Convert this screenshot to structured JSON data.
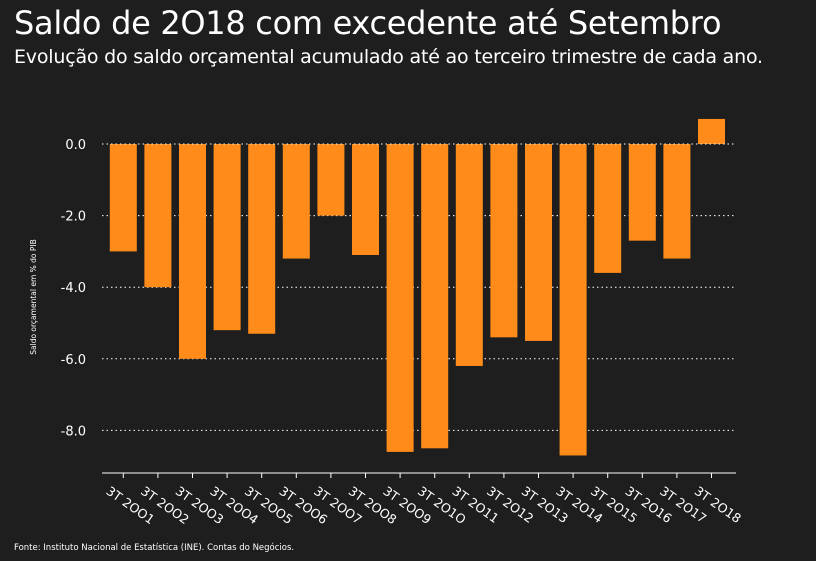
{
  "chart_data": {
    "type": "bar",
    "title": "Saldo de 2O18 com excedente até Setembro",
    "subtitle": "Evolução do saldo orçamental acumulado até ao terceiro trimestre de cada ano.",
    "ylabel": "Saldo orçamental em % do PIB",
    "xlabel": "",
    "ylim": [
      -9.2,
      0.8
    ],
    "yticks": [
      0.0,
      -2.0,
      -4.0,
      -6.0,
      -8.0
    ],
    "ytick_labels": [
      "0.0",
      "-2.0",
      "-4.0",
      "-6.0",
      "-8.0"
    ],
    "grid": "dotted horizontal",
    "categories": [
      "3T 2001",
      "3T 2002",
      "3T 2003",
      "3T 2004",
      "3T 2005",
      "3T 2006",
      "3T 2007",
      "3T 2008",
      "3T 2009",
      "3T 2010",
      "3T 2011",
      "3T 2012",
      "3T 2013",
      "3T 2014",
      "3T 2015",
      "3T 2016",
      "3T 2017",
      "3T 2018"
    ],
    "category_labels": [
      "3T 2OO1",
      "3T 2OO2",
      "3T 2OO3",
      "3T 2OO4",
      "3T 2OO5",
      "3T 2OO6",
      "3T 2OO7",
      "3T 2OO8",
      "3T 2OO9",
      "3T 2O1O",
      "3T 2O11",
      "3T 2O12",
      "3T 2O13",
      "3T 2O14",
      "3T 2O15",
      "3T 2O16",
      "3T 2O17",
      "3T 2O18"
    ],
    "values": [
      -3.0,
      -4.0,
      -6.0,
      -5.2,
      -5.3,
      -3.2,
      -2.0,
      -3.1,
      -8.6,
      -8.5,
      -6.2,
      -5.4,
      -5.5,
      -8.7,
      -3.6,
      -2.7,
      -3.2,
      0.7
    ],
    "bar_color": "#ff8c1a"
  },
  "source": "Fonte: Instituto Nacional de Estatística (INE). Contas do Negócios."
}
